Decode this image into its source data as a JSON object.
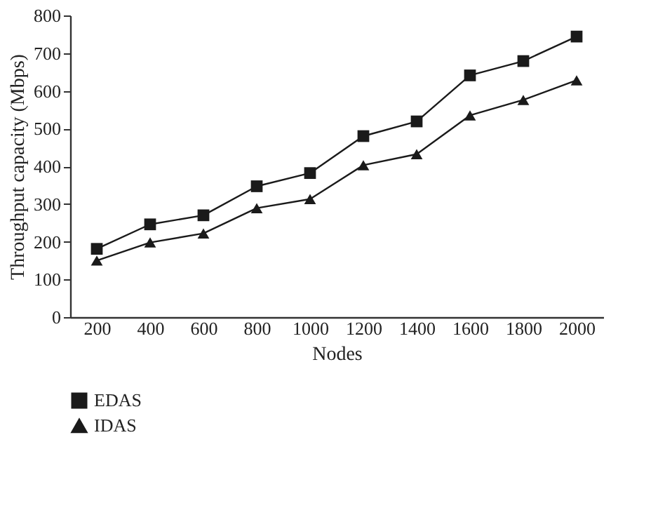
{
  "chart_data": {
    "type": "line",
    "xlabel": "Nodes",
    "ylabel": "Throughput capacity (Mbps)",
    "categories": [
      "200",
      "400",
      "600",
      "800",
      "1000",
      "1200",
      "1400",
      "1600",
      "1800",
      "2000"
    ],
    "series": [
      {
        "name": "EDAS",
        "color": "#1a1a1a",
        "marker": "square",
        "values": [
          181,
          246,
          270,
          347,
          382,
          480,
          519,
          641,
          679,
          744
        ]
      },
      {
        "name": "IDAS",
        "color": "#1a1a1a",
        "marker": "triangle",
        "values": [
          150,
          198,
          222,
          289,
          313,
          403,
          432,
          535,
          576,
          628
        ]
      }
    ],
    "ylim": [
      0,
      800
    ],
    "yticks": [
      0,
      100,
      200,
      300,
      400,
      500,
      600,
      700,
      800
    ],
    "grid": false,
    "legend": "bottom left",
    "line_style": "solid"
  }
}
